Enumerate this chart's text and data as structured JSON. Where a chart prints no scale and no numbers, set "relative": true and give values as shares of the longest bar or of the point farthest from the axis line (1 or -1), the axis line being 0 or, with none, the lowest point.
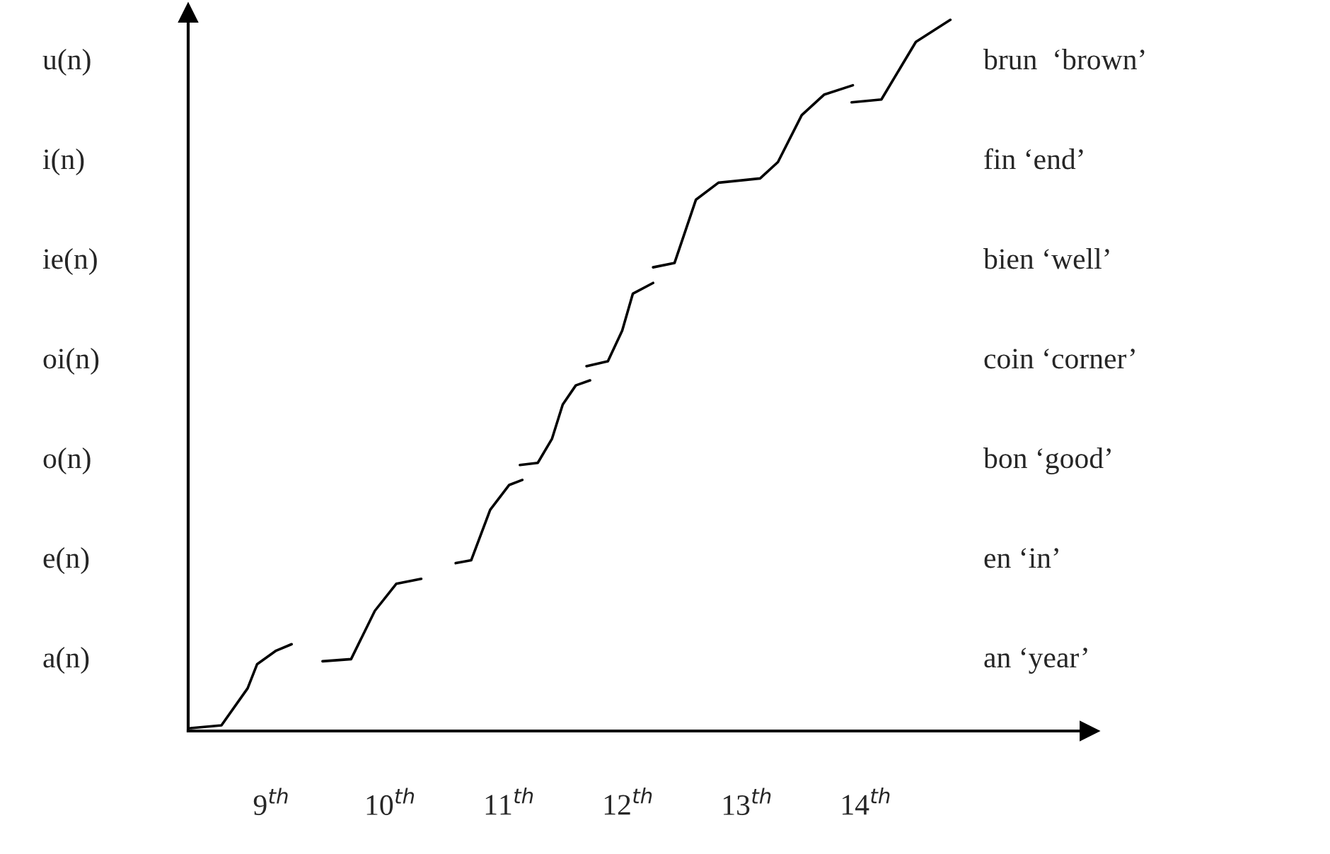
{
  "chart_data": {
    "type": "line",
    "relative": true,
    "grid": false,
    "legend": false,
    "line_style": "solid",
    "marker": "none",
    "xlim": [
      8.3,
      15.88
    ],
    "xticks": [
      {
        "value": 9,
        "label": "9$^{th}$"
      },
      {
        "value": 10,
        "label": "10$^{th}$"
      },
      {
        "value": 11,
        "label": "11$^{th}$"
      },
      {
        "value": 12,
        "label": "12$^{th}$"
      },
      {
        "value": 13,
        "label": "13$^{th}$"
      },
      {
        "value": 14,
        "label": "14$^{th}$"
      }
    ],
    "annotations": [
      "a(n)",
      "e(n)",
      "o(n)",
      "oi(n)",
      "ie(n)",
      "i(n)",
      "u(n)",
      "an ‘year’",
      "en ‘in’",
      "bon ‘good’",
      "coin ‘corner’",
      "bien ‘well’",
      "fin ‘end’",
      "brun  ‘brown’"
    ],
    "series": [
      {
        "color": "#000000",
        "x": [
          8.32,
          8.58,
          8.8,
          8.88,
          9.04,
          9.17
        ],
        "values": [
          0.004,
          0.008,
          0.06,
          0.094,
          0.113,
          0.122
        ]
      },
      {
        "color": "#000000",
        "x": [
          9.43,
          9.67,
          9.87,
          10.05,
          10.26
        ],
        "values": [
          0.098,
          0.101,
          0.169,
          0.207,
          0.214
        ]
      },
      {
        "color": "#000000",
        "x": [
          10.55,
          10.68,
          10.84,
          11.0,
          11.11
        ],
        "values": [
          0.236,
          0.24,
          0.311,
          0.346,
          0.353
        ]
      },
      {
        "color": "#000000",
        "x": [
          11.09,
          11.24,
          11.36,
          11.45,
          11.56,
          11.68
        ],
        "values": [
          0.374,
          0.377,
          0.411,
          0.459,
          0.486,
          0.493
        ]
      },
      {
        "color": "#000000",
        "x": [
          11.65,
          11.83,
          11.95,
          12.04,
          12.21
        ],
        "values": [
          0.513,
          0.52,
          0.563,
          0.615,
          0.63
        ]
      },
      {
        "color": "#000000",
        "x": [
          12.21,
          12.39,
          12.57,
          12.76,
          13.11,
          13.26,
          13.46,
          13.65,
          13.89
        ],
        "values": [
          0.652,
          0.658,
          0.747,
          0.771,
          0.777,
          0.8,
          0.866,
          0.895,
          0.908
        ]
      },
      {
        "color": "#000000",
        "x": [
          13.88,
          14.13,
          14.42,
          14.71
        ],
        "values": [
          0.884,
          0.888,
          0.969,
          1.0
        ]
      }
    ]
  }
}
